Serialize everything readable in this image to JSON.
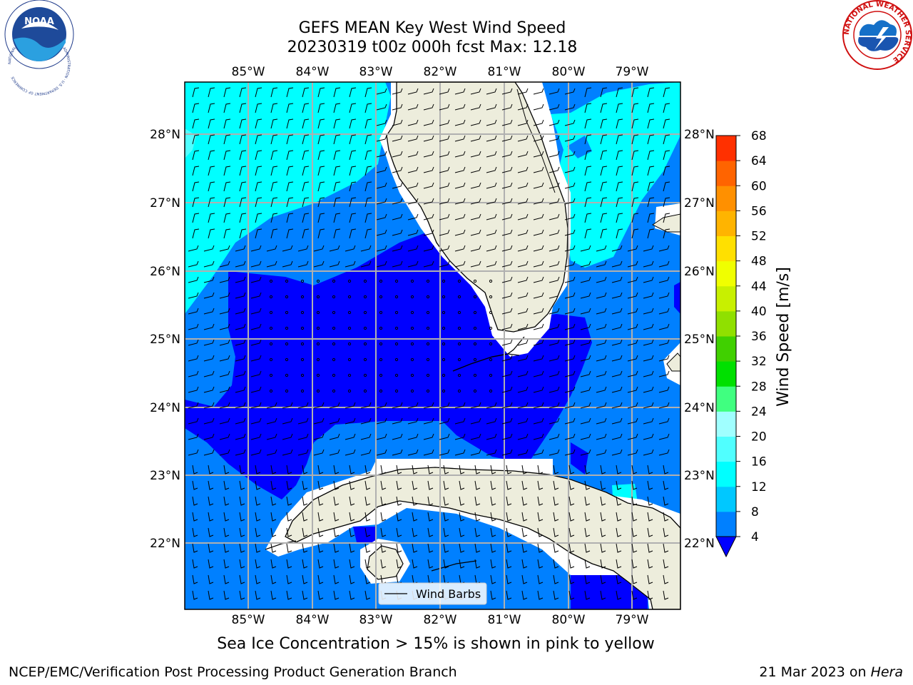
{
  "title": {
    "line1": "GEFS MEAN Key West Wind Speed",
    "line2": "20230319 t00z 000h fcst   Max: 12.18"
  },
  "axes": {
    "lon_labels": [
      "85°W",
      "84°W",
      "83°W",
      "82°W",
      "81°W",
      "80°W",
      "79°W"
    ],
    "lat_labels": [
      "28°N",
      "27°N",
      "26°N",
      "25°N",
      "24°N",
      "23°N",
      "22°N"
    ]
  },
  "legend": {
    "label": "Wind Barbs"
  },
  "colorbar": {
    "label": "Wind Speed [m/s]",
    "ticks": [
      "4",
      "8",
      "12",
      "16",
      "20",
      "24",
      "28",
      "32",
      "36",
      "40",
      "44",
      "48",
      "52",
      "56",
      "60",
      "64",
      "68"
    ],
    "colors": [
      "#0080ff",
      "#00c8ff",
      "#00ffff",
      "#50ffff",
      "#a0ffff",
      "#40ff80",
      "#00e000",
      "#40d000",
      "#90e000",
      "#c8f000",
      "#f0ff00",
      "#ffe000",
      "#ffb400",
      "#ff9000",
      "#ff6400",
      "#ff3000",
      "#ff0000"
    ],
    "underflow_color": "#0000ff"
  },
  "colors": {
    "land": "#ededdc",
    "level_0_4": "#0000ff",
    "level_4_8": "#0080ff",
    "level_8_12": "#00ffff",
    "grid": "#b0b0b0"
  },
  "subtitle": "Sea Ice Concentration > 15% is shown in pink to yellow",
  "footer": {
    "left": "NCEP/EMC/Verification Post Processing Product Generation Branch",
    "right_date": "21 Mar 2023 on ",
    "right_host": "Hera"
  },
  "logos": {
    "noaa": "NOAA",
    "noaa_ring": "NATIONAL OCEANIC AND ATMOSPHERIC ADMINISTRATION · U.S. DEPARTMENT OF COMMERCE",
    "nws": "NATIONAL WEATHER SERVICE"
  }
}
